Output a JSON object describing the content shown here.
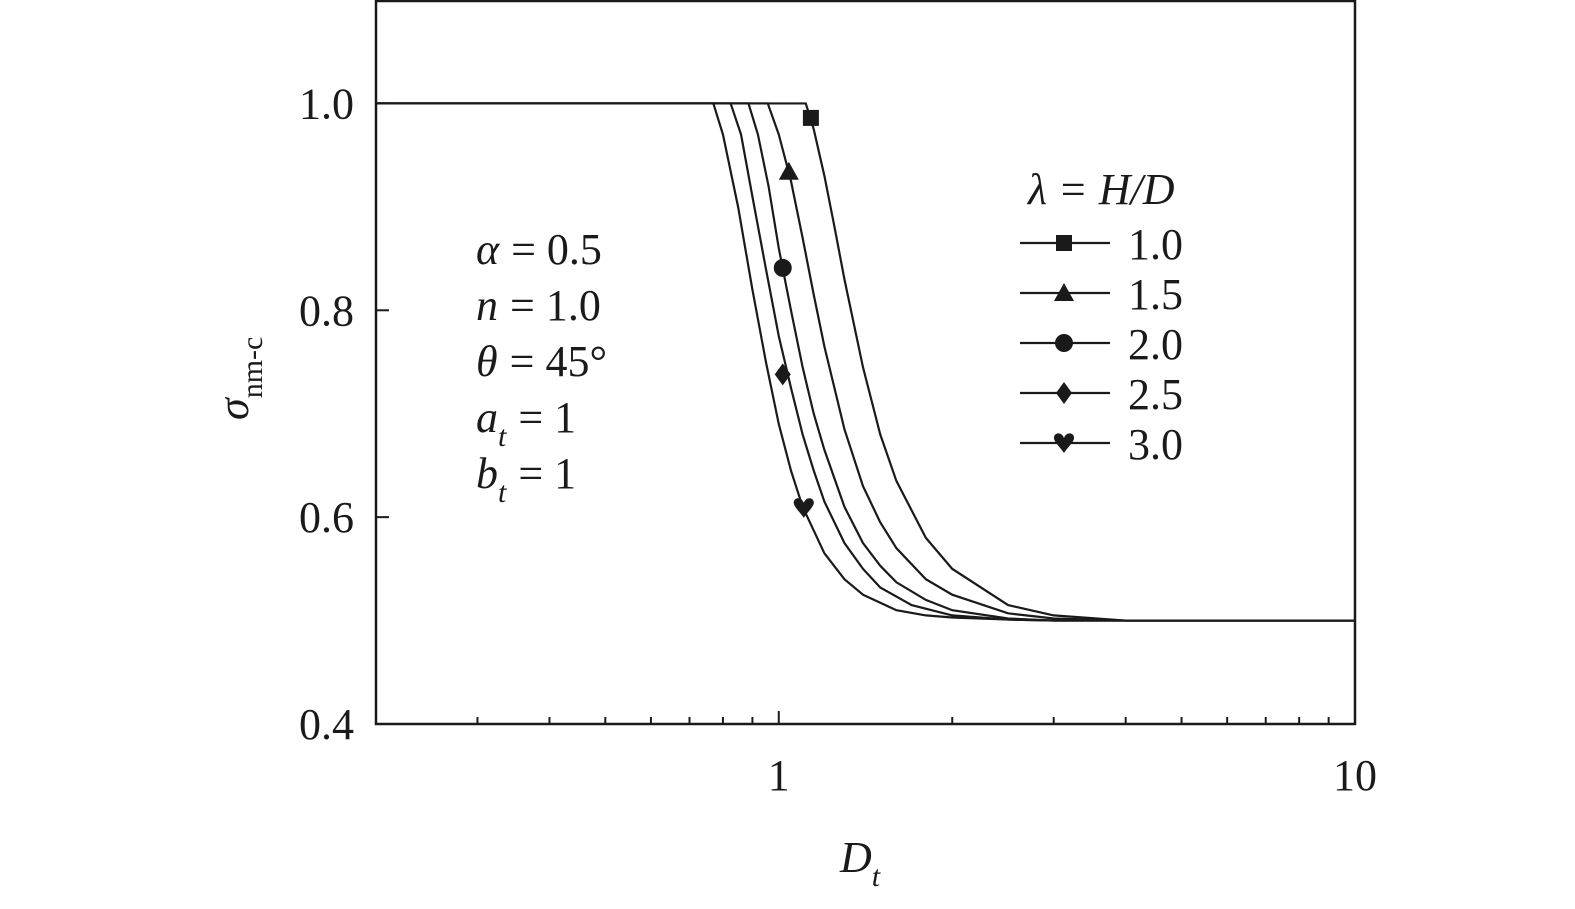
{
  "chart_data": {
    "type": "line",
    "x_label": {
      "symbol": "D",
      "subscript": "t"
    },
    "y_label": {
      "symbol": "σ",
      "subscript": "nm-c"
    },
    "xscale": "log",
    "xlim": [
      0.2,
      10
    ],
    "xticks": [
      1,
      10
    ],
    "xminorticks": [
      0.3,
      0.4,
      0.5,
      0.6,
      0.7,
      0.8,
      0.9,
      2,
      3,
      4,
      5,
      6,
      7,
      8,
      9
    ],
    "ylim": [
      0.4,
      1.1
    ],
    "yticks": [
      0.4,
      0.6,
      0.8,
      {
        "value": 1,
        "label": "1.0"
      }
    ],
    "color": "#1a1a1a",
    "legend_title": "λ = H/D",
    "legend_position": "upper right",
    "annotations": [
      {
        "symbol": "α",
        "rest": "= 0.5"
      },
      {
        "symbol": "n",
        "rest": "= 1.0"
      },
      {
        "symbol": "θ",
        "rest": "= 45°"
      },
      {
        "symbol": "a",
        "subscript": "t",
        "rest": "= 1"
      },
      {
        "symbol": "b",
        "subscript": "t",
        "rest": "= 1"
      }
    ],
    "series": [
      {
        "name": "1.0",
        "marker": {
          "shape": "square",
          "x": 1.137,
          "y": 0.986
        },
        "x": [
          0.2,
          1.114,
          1.15,
          1.2,
          1.25,
          1.3,
          1.4,
          1.5,
          1.6,
          1.8,
          2,
          2.5,
          3,
          4,
          10
        ],
        "values": [
          1,
          1,
          0.975,
          0.93,
          0.88,
          0.83,
          0.745,
          0.68,
          0.635,
          0.58,
          0.55,
          0.515,
          0.505,
          0.5,
          0.5
        ]
      },
      {
        "name": "1.5",
        "marker": {
          "shape": "triangle",
          "x": 1.041,
          "y": 0.934
        },
        "x": [
          0.2,
          0.957,
          1.0,
          1.05,
          1.1,
          1.15,
          1.2,
          1.3,
          1.4,
          1.5,
          1.6,
          1.8,
          2,
          2.5,
          3,
          4,
          10
        ],
        "values": [
          1,
          1,
          0.97,
          0.925,
          0.87,
          0.815,
          0.765,
          0.685,
          0.63,
          0.595,
          0.57,
          0.54,
          0.525,
          0.507,
          0.502,
          0.5,
          0.5
        ]
      },
      {
        "name": "2.0",
        "marker": {
          "shape": "circle",
          "x": 1.016,
          "y": 0.841
        },
        "x": [
          0.2,
          0.886,
          0.92,
          0.96,
          1.0,
          1.05,
          1.1,
          1.15,
          1.2,
          1.3,
          1.4,
          1.5,
          1.6,
          1.8,
          2,
          2.5,
          3,
          4,
          10
        ],
        "values": [
          1,
          1,
          0.97,
          0.92,
          0.86,
          0.8,
          0.745,
          0.7,
          0.665,
          0.61,
          0.575,
          0.553,
          0.537,
          0.52,
          0.51,
          0.502,
          0.5,
          0.5,
          0.5
        ]
      },
      {
        "name": "2.5",
        "marker": {
          "shape": "diamond",
          "x": 1.016,
          "y": 0.738
        },
        "x": [
          0.2,
          0.825,
          0.86,
          0.9,
          0.95,
          1.0,
          1.05,
          1.1,
          1.15,
          1.2,
          1.3,
          1.4,
          1.5,
          1.7,
          2,
          2.5,
          3,
          4,
          10
        ],
        "values": [
          1,
          1,
          0.97,
          0.91,
          0.84,
          0.775,
          0.725,
          0.68,
          0.645,
          0.615,
          0.575,
          0.55,
          0.532,
          0.515,
          0.505,
          0.501,
          0.5,
          0.5,
          0.5
        ]
      },
      {
        "name": "3.0",
        "marker": {
          "shape": "heart",
          "x": 1.105,
          "y": 0.609
        },
        "x": [
          0.2,
          0.77,
          0.8,
          0.85,
          0.9,
          0.95,
          1.0,
          1.05,
          1.1,
          1.2,
          1.3,
          1.4,
          1.6,
          1.8,
          2,
          2.5,
          3,
          4,
          10
        ],
        "values": [
          1,
          1,
          0.97,
          0.9,
          0.82,
          0.75,
          0.69,
          0.645,
          0.61,
          0.565,
          0.54,
          0.525,
          0.51,
          0.505,
          0.503,
          0.501,
          0.5,
          0.5,
          0.5
        ]
      }
    ]
  }
}
